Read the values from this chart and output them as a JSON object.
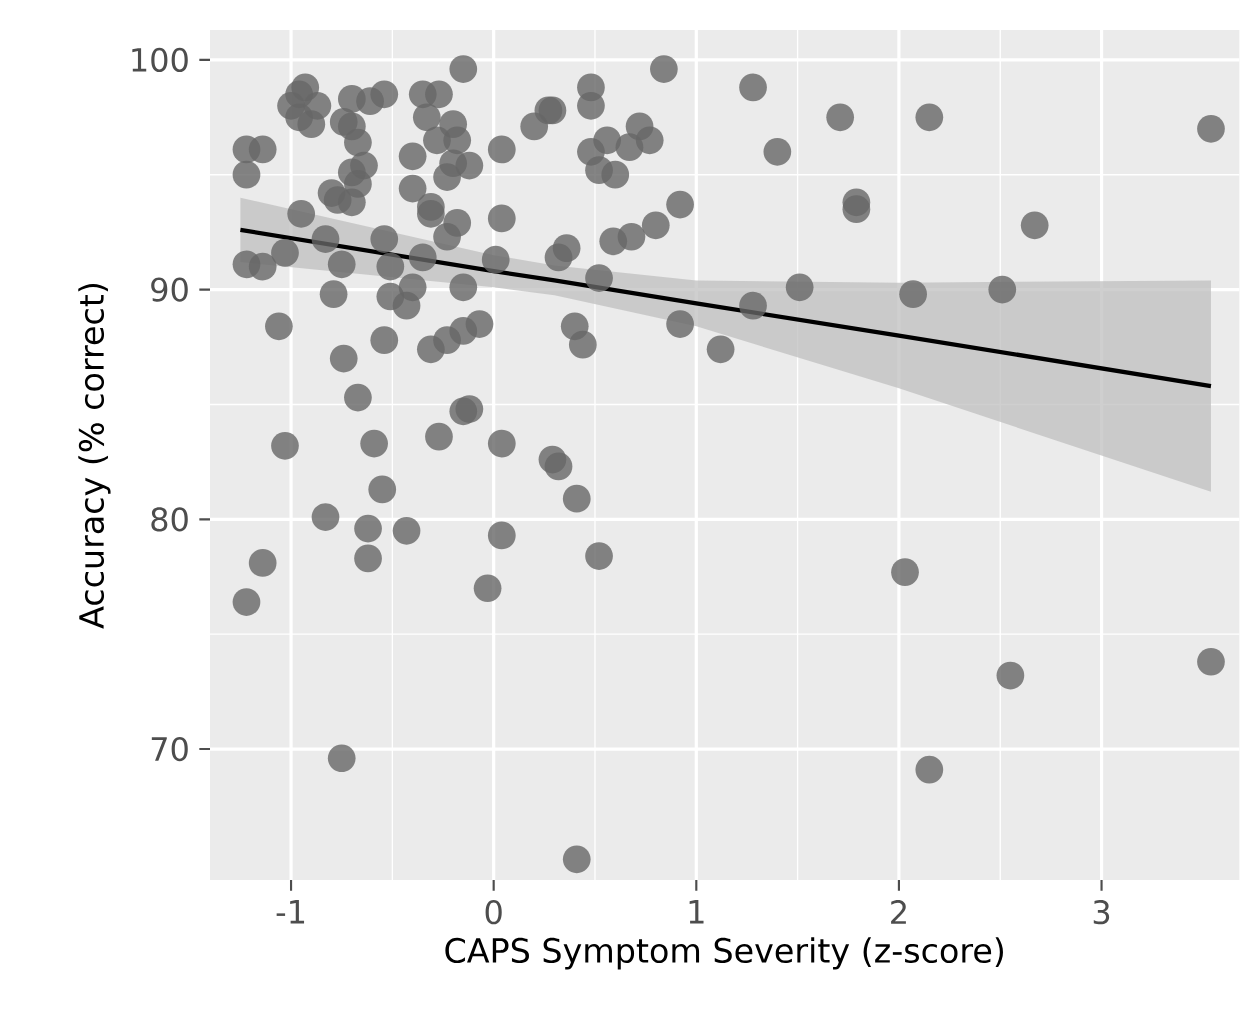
{
  "chart_data": {
    "type": "scatter",
    "xlabel": "CAPS Symptom Severity (z-score)",
    "ylabel": "Accuracy (% correct)",
    "xlim": [
      -1.4,
      3.68
    ],
    "ylim": [
      64.3,
      101.3
    ],
    "xticks": [
      -1,
      0,
      1,
      2,
      3
    ],
    "yticks": [
      70,
      80,
      90,
      100
    ],
    "grid": true,
    "series": [
      {
        "marker": "circle",
        "color": "#666666",
        "x": [
          0.84,
          0.29,
          0.48,
          0.48,
          1.28,
          1.71,
          2.15,
          3.54,
          0.56,
          0.72,
          0.77,
          0.48,
          0.67,
          0.52,
          0.6,
          1.4,
          0.92,
          0.8,
          0.68,
          0.59,
          0.36,
          0.32,
          0.52,
          1.79,
          1.79,
          2.67,
          1.51,
          2.07,
          2.51,
          1.28,
          0.92,
          1.12,
          0.4,
          0.44,
          0.29,
          0.32,
          0.41,
          0.52,
          2.03,
          2.55,
          3.54,
          2.15,
          0.41,
          -0.15,
          -0.93,
          -0.96,
          -1.0,
          -0.96,
          -0.9,
          -0.87,
          -0.7,
          -0.61,
          -0.54,
          -0.74,
          -0.67,
          -0.7,
          -0.64,
          -0.7,
          -0.67,
          -0.8,
          -0.77,
          -0.7,
          -0.35,
          -0.27,
          -0.33,
          -0.2,
          -0.18,
          -0.28,
          -0.4,
          -0.2,
          -0.12,
          -0.23,
          0.04,
          0.2,
          0.27,
          -1.22,
          -1.14,
          -1.22,
          -0.4,
          -0.31,
          -0.31,
          -0.18,
          -0.23,
          0.04,
          -0.95,
          -0.83,
          -0.54,
          -1.03,
          -1.22,
          -1.14,
          -0.75,
          -0.51,
          -0.35,
          0.01,
          -0.79,
          -0.51,
          -0.43,
          -0.4,
          -0.15,
          -1.06,
          -0.54,
          -0.31,
          -0.23,
          -0.15,
          -0.07,
          -0.74,
          -0.67,
          -0.15,
          -0.12,
          -1.03,
          -0.59,
          -0.27,
          0.04,
          -0.55,
          -0.83,
          -0.62,
          -0.43,
          -0.62,
          -1.14,
          -1.22,
          0.04,
          -0.03,
          -0.75
        ],
        "values": [
          99.6,
          97.8,
          98.8,
          98.0,
          98.8,
          97.5,
          97.5,
          97.0,
          96.5,
          97.1,
          96.5,
          96.0,
          96.2,
          95.2,
          95.0,
          96.0,
          93.7,
          92.8,
          92.3,
          92.1,
          91.8,
          91.4,
          90.5,
          93.8,
          93.5,
          92.8,
          90.1,
          89.8,
          90.0,
          89.3,
          88.5,
          87.4,
          88.4,
          87.6,
          82.6,
          82.3,
          80.9,
          78.4,
          77.7,
          73.2,
          73.8,
          69.1,
          65.2,
          99.6,
          98.8,
          98.5,
          98.0,
          97.5,
          97.2,
          98.0,
          98.3,
          98.2,
          98.5,
          97.3,
          96.4,
          97.1,
          95.4,
          95.1,
          94.6,
          94.2,
          93.9,
          93.8,
          98.5,
          98.5,
          97.5,
          97.2,
          96.5,
          96.5,
          95.8,
          95.5,
          95.4,
          94.9,
          96.1,
          97.1,
          97.8,
          96.1,
          96.1,
          95.0,
          94.4,
          93.6,
          93.3,
          92.9,
          92.3,
          93.1,
          93.3,
          92.2,
          92.2,
          91.6,
          91.1,
          91.0,
          91.1,
          91.0,
          91.4,
          91.3,
          89.8,
          89.7,
          89.3,
          90.1,
          90.1,
          88.4,
          87.8,
          87.4,
          87.8,
          88.2,
          88.5,
          87.0,
          85.3,
          84.7,
          84.8,
          83.2,
          83.3,
          83.6,
          83.3,
          81.3,
          80.1,
          79.6,
          79.5,
          78.3,
          78.1,
          76.4,
          79.3,
          77.0,
          69.6
        ]
      },
      {
        "type": "line",
        "color": "#000000",
        "x": [
          -1.25,
          0,
          0.3,
          1,
          2,
          3.54
        ],
        "values": [
          92.6,
          90.8,
          90.4,
          89.4,
          88.0,
          85.8
        ],
        "lower": [
          91.2,
          90.1,
          89.75,
          88.4,
          85.7,
          81.2
        ],
        "upper": [
          94.0,
          91.5,
          91.05,
          90.4,
          90.3,
          90.4
        ]
      }
    ]
  }
}
